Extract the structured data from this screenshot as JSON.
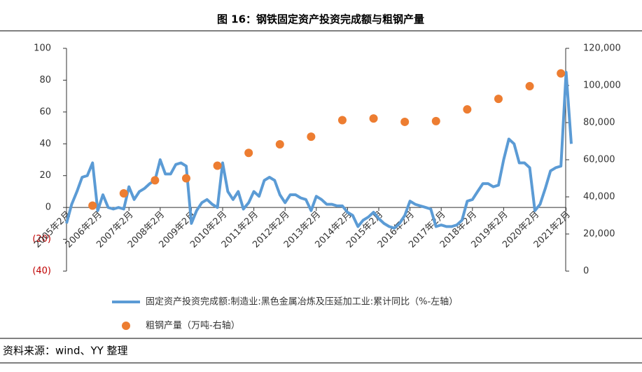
{
  "title": "图 16：钢铁固定资产投资完成额与粗钢产量",
  "source": "资料来源：wind、YY 整理",
  "chart_data": {
    "type": "combo",
    "categories": [
      "2005年2月",
      null,
      null,
      null,
      null,
      null,
      "2006年2月",
      null,
      null,
      null,
      null,
      null,
      "2007年2月",
      null,
      null,
      null,
      null,
      null,
      "2008年2月",
      null,
      null,
      null,
      null,
      null,
      "2009年2月",
      null,
      null,
      null,
      null,
      null,
      "2010年2月",
      null,
      null,
      null,
      null,
      null,
      "2011年2月",
      null,
      null,
      null,
      null,
      null,
      "2012年2月",
      null,
      null,
      null,
      null,
      null,
      "2013年2月",
      null,
      null,
      null,
      null,
      null,
      "2014年2月",
      null,
      null,
      null,
      null,
      null,
      "2015年2月",
      null,
      null,
      null,
      null,
      null,
      "2016年2月",
      null,
      null,
      null,
      null,
      null,
      "2017年2月",
      null,
      null,
      null,
      null,
      null,
      "2018年2月",
      null,
      null,
      null,
      null,
      null,
      "2019年2月",
      null,
      null,
      null,
      null,
      null,
      "2020年2月",
      null,
      null,
      null,
      null,
      null,
      "2021年2月",
      null
    ],
    "series": [
      {
        "name": "固定资产投资完成额:制造业:黑色金属冶炼及压延加工业:累计同比（%-左轴）",
        "type": "line",
        "color": "#5b9bd5",
        "axis": "y",
        "values": [
          -10,
          2,
          10,
          19,
          20,
          28,
          -2,
          8,
          0,
          -1,
          0,
          -1,
          13,
          5,
          10,
          12,
          15,
          17,
          30,
          21,
          21,
          27,
          28,
          26,
          -10,
          -2,
          3,
          5,
          2,
          0,
          28,
          10,
          5,
          10,
          -1,
          3,
          10,
          7,
          17,
          19,
          17,
          8,
          3,
          8,
          8,
          6,
          5,
          -2,
          7,
          5,
          2,
          2,
          1,
          1,
          -3,
          -5,
          -12,
          -8,
          -6,
          -3,
          -7,
          -10,
          -12,
          -13,
          -10,
          -5,
          4,
          2,
          1,
          0,
          -1,
          -12,
          -11,
          -12,
          -12,
          -11,
          -8,
          4,
          5,
          10,
          15,
          15,
          13,
          14,
          30,
          43,
          40,
          28,
          28,
          25,
          -2,
          2,
          12,
          23,
          25,
          26,
          85,
          40
        ]
      },
      {
        "name": "粗钢产量（万吨-右轴）",
        "type": "scatter",
        "color": "#ed7d31",
        "axis": "y2",
        "values": [
          null,
          null,
          null,
          null,
          null,
          35300,
          null,
          null,
          null,
          null,
          null,
          41900,
          null,
          null,
          null,
          null,
          null,
          48900,
          null,
          null,
          null,
          null,
          null,
          50000,
          null,
          null,
          null,
          null,
          null,
          56800,
          null,
          null,
          null,
          null,
          null,
          63700,
          null,
          null,
          null,
          null,
          null,
          68300,
          null,
          null,
          null,
          null,
          null,
          72400,
          null,
          null,
          null,
          null,
          null,
          81300,
          null,
          null,
          null,
          null,
          null,
          82200,
          null,
          null,
          null,
          null,
          null,
          80400,
          null,
          null,
          null,
          null,
          null,
          80800,
          null,
          null,
          null,
          null,
          null,
          87100,
          null,
          null,
          null,
          null,
          null,
          92800,
          null,
          null,
          null,
          null,
          null,
          99600,
          null,
          null,
          null,
          null,
          null,
          106500,
          null,
          null
        ]
      }
    ],
    "ylim": [
      -40,
      100
    ],
    "yticks": [
      {
        "value": -40,
        "label": "(40)"
      },
      {
        "value": -20,
        "label": "(20)"
      },
      0,
      20,
      40,
      60,
      80,
      100
    ],
    "negative_ytick_color": "#c00000",
    "y2lim": [
      0,
      120000
    ],
    "y2ticks": [
      0,
      {
        "value": 20000,
        "label": "20,000"
      },
      {
        "value": 40000,
        "label": "40,000"
      },
      {
        "value": 60000,
        "label": "60,000"
      },
      {
        "value": 80000,
        "label": "80,000"
      },
      {
        "value": 100000,
        "label": "100,000"
      },
      {
        "value": 120000,
        "label": "120,000"
      }
    ],
    "grid": false,
    "legend": "bottom"
  }
}
